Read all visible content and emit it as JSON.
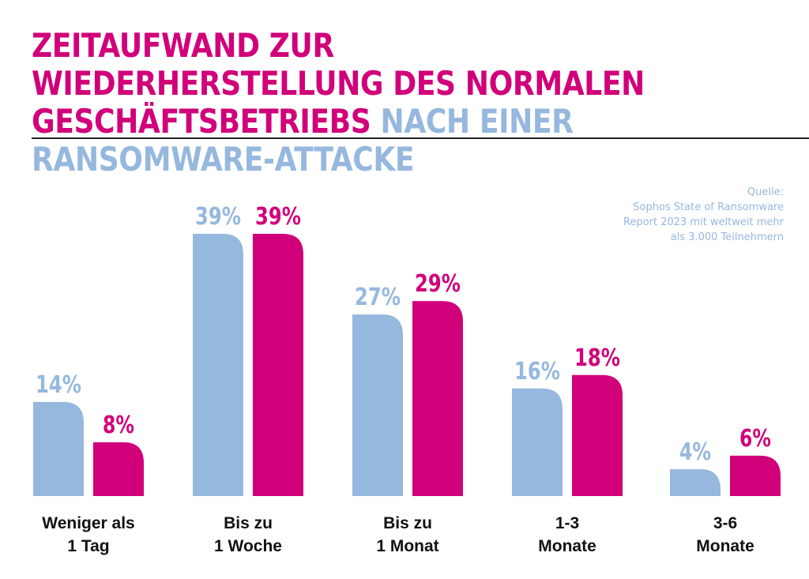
{
  "title": {
    "line1": "ZEITAUFWAND ZUR WIEDERHERSTELLUNG DES NORMALEN",
    "line2_pink": "GESCHÄFTSBETRIEBS",
    "line2_blue": "NACH EINER RANSOMWARE-ATTACKE"
  },
  "source": {
    "lines": [
      "Quelle:",
      "Sophos State of Ransomware",
      "Report 2023 mit weltweit mehr",
      "als 3.000 Teilnehmern"
    ]
  },
  "colors": {
    "series_a": "#96b8de",
    "series_b": "#d1007a"
  },
  "chart_data": {
    "type": "bar",
    "title": "Zeitaufwand zur Wiederherstellung des normalen Geschäftsbetriebs nach einer Ransomware-Attacke",
    "categories": [
      {
        "line1": "Weniger als",
        "line2": "1 Tag"
      },
      {
        "line1": "Bis zu",
        "line2": "1 Woche"
      },
      {
        "line1": "Bis zu",
        "line2": "1 Monat"
      },
      {
        "line1": "1-3",
        "line2": "Monate"
      },
      {
        "line1": "3-6",
        "line2": "Monate"
      }
    ],
    "series": [
      {
        "name": "series_a",
        "values": [
          14,
          39,
          27,
          16,
          4
        ],
        "labels": [
          "14%",
          "39%",
          "27%",
          "16%",
          "4%"
        ]
      },
      {
        "name": "series_b",
        "values": [
          8,
          39,
          29,
          18,
          6
        ],
        "labels": [
          "8%",
          "39%",
          "29%",
          "18%",
          "6%"
        ]
      }
    ],
    "unit": "%",
    "ylim": [
      0,
      39
    ]
  }
}
